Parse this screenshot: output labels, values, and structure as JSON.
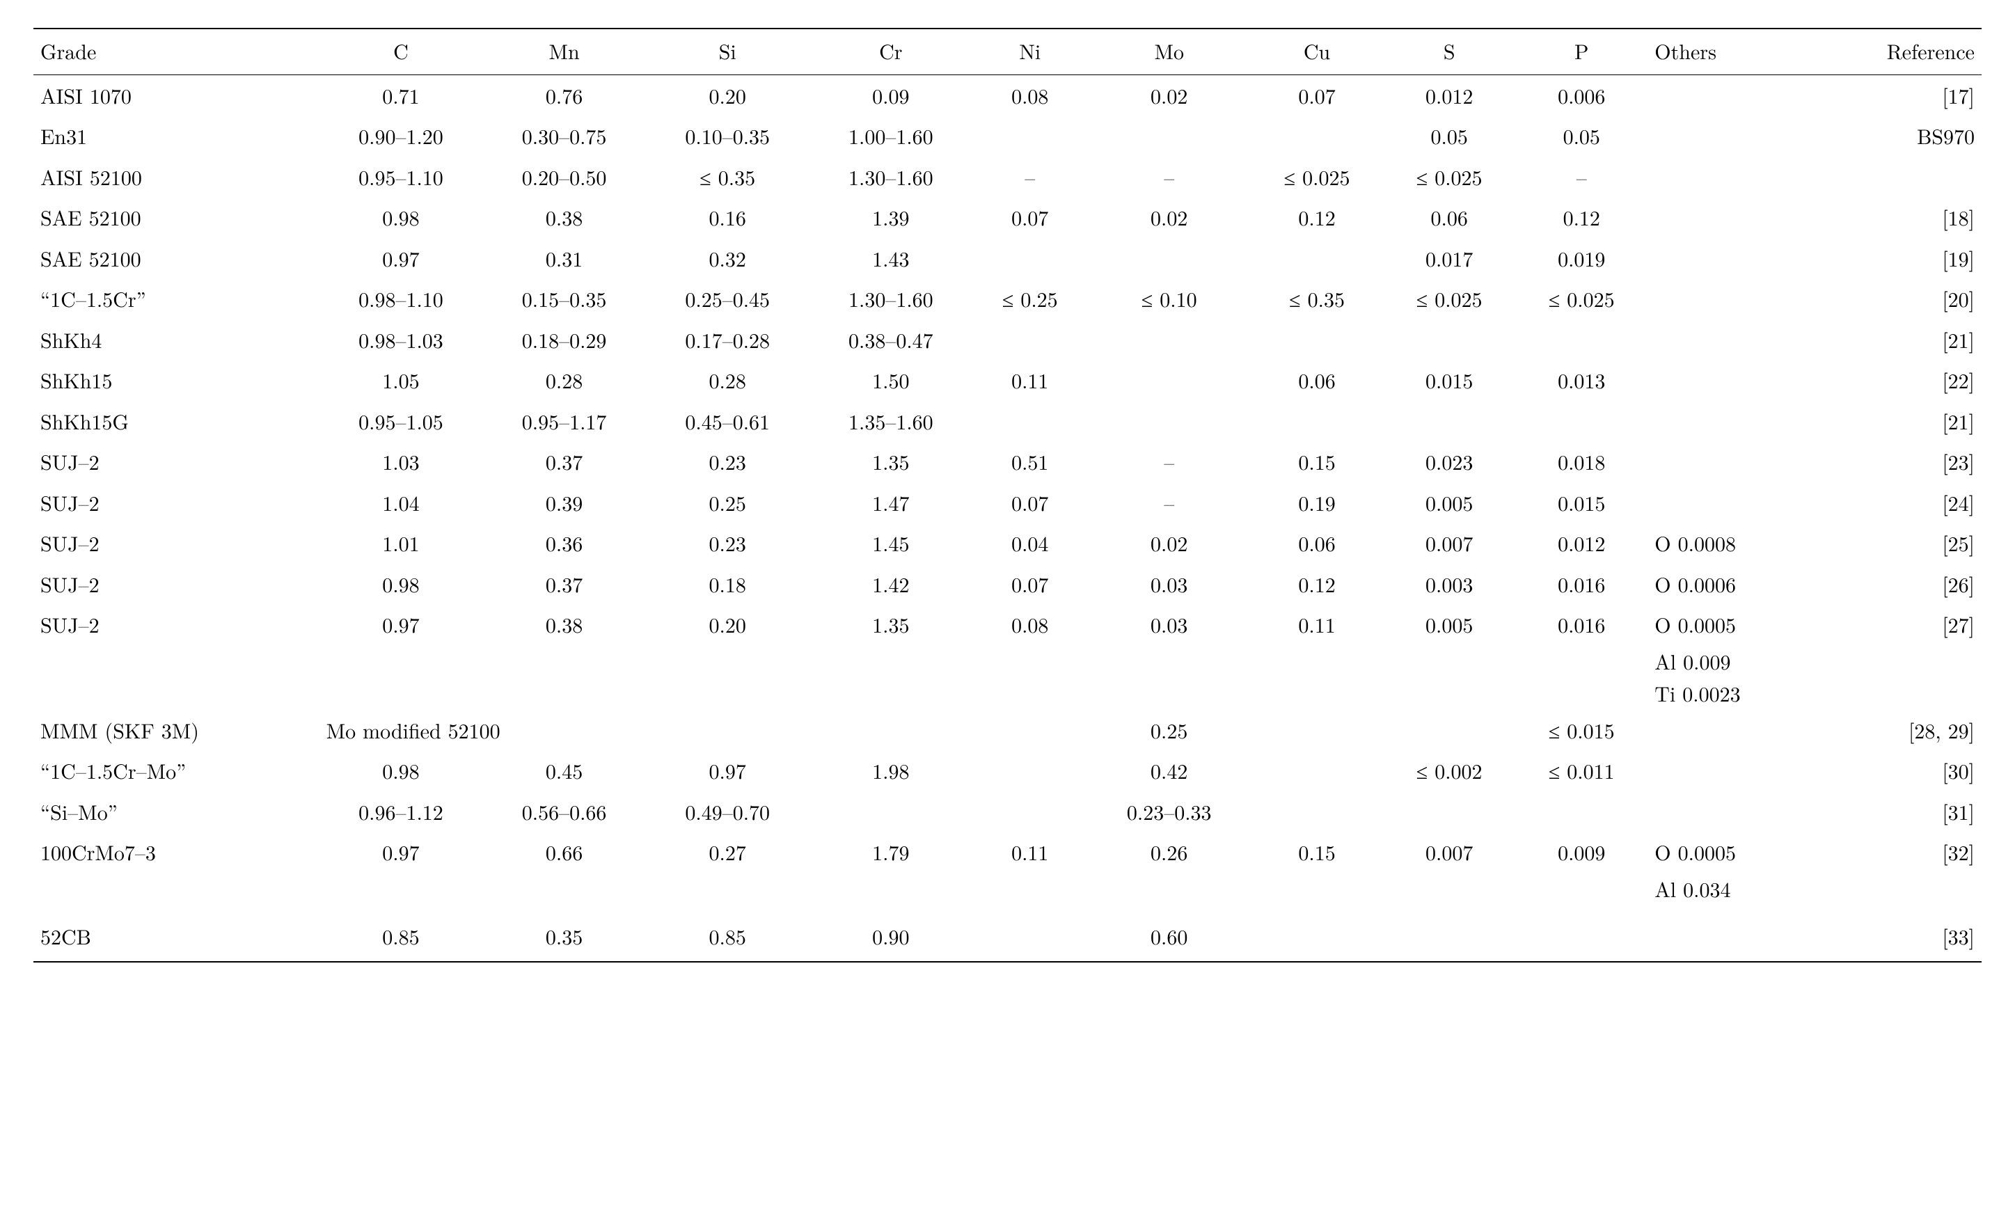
{
  "table": {
    "background_color": "#ffffff",
    "text_color": "#000000",
    "rule_color": "#000000",
    "font_family": "Latin Modern Roman",
    "base_fontsize_pt": 22,
    "columns": [
      {
        "key": "grade",
        "label": "Grade",
        "align": "left"
      },
      {
        "key": "c",
        "label": "C",
        "align": "center"
      },
      {
        "key": "mn",
        "label": "Mn",
        "align": "center"
      },
      {
        "key": "si",
        "label": "Si",
        "align": "center"
      },
      {
        "key": "cr",
        "label": "Cr",
        "align": "center"
      },
      {
        "key": "ni",
        "label": "Ni",
        "align": "center"
      },
      {
        "key": "mo",
        "label": "Mo",
        "align": "center"
      },
      {
        "key": "cu",
        "label": "Cu",
        "align": "center"
      },
      {
        "key": "s",
        "label": "S",
        "align": "center"
      },
      {
        "key": "p",
        "label": "P",
        "align": "center"
      },
      {
        "key": "others",
        "label": "Others",
        "align": "left"
      },
      {
        "key": "ref",
        "label": "Reference",
        "align": "right"
      }
    ],
    "rows": [
      {
        "grade": "AISI 1070",
        "c": "0.71",
        "mn": "0.76",
        "si": "0.20",
        "cr": "0.09",
        "ni": "0.08",
        "mo": "0.02",
        "cu": "0.07",
        "s": "0.012",
        "p": "0.006",
        "others": "",
        "ref": "[17]"
      },
      {
        "grade": "En31",
        "c": "0.90–1.20",
        "mn": "0.30–0.75",
        "si": "0.10–0.35",
        "cr": "1.00–1.60",
        "ni": "",
        "mo": "",
        "cu": "",
        "s": "0.05",
        "p": "0.05",
        "others": "",
        "ref": "BS970"
      },
      {
        "grade": "AISI 52100",
        "c": "0.95–1.10",
        "mn": "0.20–0.50",
        "si": "≤ 0.35",
        "cr": "1.30–1.60",
        "ni": "–",
        "mo": "–",
        "cu": "≤ 0.025",
        "s": "≤ 0.025",
        "p": "–",
        "others": "",
        "ref": ""
      },
      {
        "grade": "SAE 52100",
        "c": "0.98",
        "mn": "0.38",
        "si": "0.16",
        "cr": "1.39",
        "ni": "0.07",
        "mo": "0.02",
        "cu": "0.12",
        "s": "0.06",
        "p": "0.12",
        "others": "",
        "ref": "[18]"
      },
      {
        "grade": "SAE 52100",
        "c": "0.97",
        "mn": "0.31",
        "si": "0.32",
        "cr": "1.43",
        "ni": "",
        "mo": "",
        "cu": "",
        "s": "0.017",
        "p": "0.019",
        "others": "",
        "ref": "[19]"
      },
      {
        "grade": "“1C–1.5Cr”",
        "c": "0.98–1.10",
        "mn": "0.15–0.35",
        "si": "0.25–0.45",
        "cr": "1.30–1.60",
        "ni": "≤ 0.25",
        "mo": "≤ 0.10",
        "cu": "≤ 0.35",
        "s": "≤ 0.025",
        "p": "≤ 0.025",
        "others": "",
        "ref": "[20]"
      },
      {
        "grade": "ShKh4",
        "c": "0.98–1.03",
        "mn": "0.18–0.29",
        "si": "0.17–0.28",
        "cr": "0.38–0.47",
        "ni": "",
        "mo": "",
        "cu": "",
        "s": "",
        "p": "",
        "others": "",
        "ref": "[21]"
      },
      {
        "grade": "ShKh15",
        "c": "1.05",
        "mn": "0.28",
        "si": "0.28",
        "cr": "1.50",
        "ni": "0.11",
        "mo": "",
        "cu": "0.06",
        "s": "0.015",
        "p": "0.013",
        "others": "",
        "ref": "[22]"
      },
      {
        "grade": "ShKh15G",
        "c": "0.95–1.05",
        "mn": "0.95–1.17",
        "si": "0.45–0.61",
        "cr": "1.35–1.60",
        "ni": "",
        "mo": "",
        "cu": "",
        "s": "",
        "p": "",
        "others": "",
        "ref": "[21]"
      },
      {
        "grade": "SUJ–2",
        "c": "1.03",
        "mn": "0.37",
        "si": "0.23",
        "cr": "1.35",
        "ni": "0.51",
        "mo": "–",
        "cu": "0.15",
        "s": "0.023",
        "p": "0.018",
        "others": "",
        "ref": "[23]"
      },
      {
        "grade": "SUJ–2",
        "c": "1.04",
        "mn": "0.39",
        "si": "0.25",
        "cr": "1.47",
        "ni": "0.07",
        "mo": "–",
        "cu": "0.19",
        "s": "0.005",
        "p": "0.015",
        "others": "",
        "ref": "[24]"
      },
      {
        "grade": "SUJ–2",
        "c": "1.01",
        "mn": "0.36",
        "si": "0.23",
        "cr": "1.45",
        "ni": "0.04",
        "mo": "0.02",
        "cu": "0.06",
        "s": "0.007",
        "p": "0.012",
        "others": "O 0.0008",
        "ref": "[25]"
      },
      {
        "grade": "SUJ–2",
        "c": "0.98",
        "mn": "0.37",
        "si": "0.18",
        "cr": "1.42",
        "ni": "0.07",
        "mo": "0.03",
        "cu": "0.12",
        "s": "0.003",
        "p": "0.016",
        "others": "O 0.0006",
        "ref": "[26]"
      },
      {
        "grade": "SUJ–2",
        "c": "0.97",
        "mn": "0.38",
        "si": "0.20",
        "cr": "1.35",
        "ni": "0.08",
        "mo": "0.03",
        "cu": "0.11",
        "s": "0.005",
        "p": "0.016",
        "others": "O 0.0005",
        "ref": "[27]",
        "others_extra": [
          "Al 0.009",
          "Ti 0.0023"
        ]
      },
      {
        "grade": "MMM (SKF 3M)",
        "c": "Mo modified 52100",
        "c_colspan": 4,
        "mo": "0.25",
        "p": "≤ 0.015",
        "ref": "[28, 29]"
      },
      {
        "grade": "“1C–1.5Cr–Mo”",
        "c": "0.98",
        "mn": "0.45",
        "si": "0.97",
        "cr": "1.98",
        "ni": "",
        "mo": "0.42",
        "cu": "",
        "s": "≤ 0.002",
        "p": "≤ 0.011",
        "others": "",
        "ref": "[30]"
      },
      {
        "grade": "“Si–Mo”",
        "c": "0.96–1.12",
        "mn": "0.56–0.66",
        "si": "0.49–0.70",
        "cr": "",
        "ni": "",
        "mo": "0.23–0.33",
        "cu": "",
        "s": "",
        "p": "",
        "others": "",
        "ref": "[31]"
      },
      {
        "grade": "100CrMo7–3",
        "c": "0.97",
        "mn": "0.66",
        "si": "0.27",
        "cr": "1.79",
        "ni": "0.11",
        "mo": "0.26",
        "cu": "0.15",
        "s": "0.007",
        "p": "0.009",
        "others": "O 0.0005",
        "ref": "[32]",
        "others_extra": [
          "Al 0.034"
        ]
      },
      {
        "grade": "52CB",
        "c": "0.85",
        "mn": "0.35",
        "si": "0.85",
        "cr": "0.90",
        "ni": "",
        "mo": "0.60",
        "cu": "",
        "s": "",
        "p": "",
        "others": "",
        "ref": "[33]",
        "pad_before": true,
        "last": true
      }
    ]
  }
}
